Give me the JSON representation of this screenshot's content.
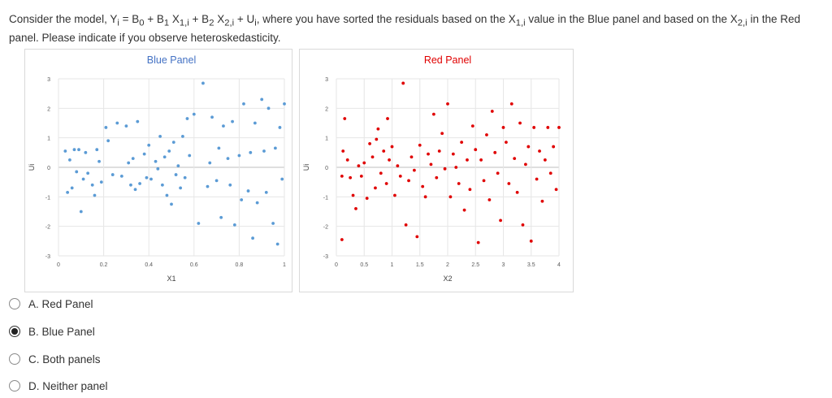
{
  "question": {
    "part1": "Consider the model, Y",
    "s_i1": "i",
    "part2": " = B",
    "s_0": "0",
    "part3": " + B",
    "s_1": "1",
    "part4": " X",
    "s_1i_a": "1,i",
    "part5": " + B",
    "s_2": "2",
    "part6": " X",
    "s_2i_a": "2,i",
    "part7": " + U",
    "s_i2": "i",
    "part8": ", where you have sorted the residuals based on the X",
    "s_1i_b": "1,i",
    "part9": " value in the Blue panel and based on the X",
    "s_2i_b": "2,i",
    "part10": " in the Red panel. Please indicate if you observe heteroskedasticity."
  },
  "chart_data": [
    {
      "type": "scatter",
      "title": "Blue Panel",
      "xlabel": "X1",
      "ylabel": "Ui",
      "xlim": [
        0,
        1
      ],
      "ylim": [
        -3,
        3
      ],
      "xticks": [
        "0",
        "0.2",
        "0.4",
        "0.6",
        "0.8",
        "1"
      ],
      "yticks": [
        "3",
        "2",
        "1",
        "0",
        "-1",
        "-2",
        "-3"
      ],
      "grid": true,
      "color": "#5b9bd5",
      "points": [
        [
          0.03,
          0.55
        ],
        [
          0.04,
          -0.85
        ],
        [
          0.05,
          0.25
        ],
        [
          0.06,
          -0.7
        ],
        [
          0.07,
          0.6
        ],
        [
          0.08,
          -0.15
        ],
        [
          0.09,
          0.6
        ],
        [
          0.1,
          -1.5
        ],
        [
          0.11,
          -0.4
        ],
        [
          0.12,
          0.5
        ],
        [
          0.13,
          -0.2
        ],
        [
          0.15,
          -0.6
        ],
        [
          0.16,
          -0.95
        ],
        [
          0.17,
          0.6
        ],
        [
          0.18,
          0.2
        ],
        [
          0.19,
          -0.5
        ],
        [
          0.21,
          1.35
        ],
        [
          0.22,
          0.9
        ],
        [
          0.24,
          -0.25
        ],
        [
          0.26,
          1.5
        ],
        [
          0.28,
          -0.3
        ],
        [
          0.3,
          1.4
        ],
        [
          0.31,
          0.15
        ],
        [
          0.32,
          -0.6
        ],
        [
          0.33,
          0.3
        ],
        [
          0.34,
          -0.75
        ],
        [
          0.35,
          1.55
        ],
        [
          0.36,
          -0.55
        ],
        [
          0.38,
          0.45
        ],
        [
          0.39,
          -0.35
        ],
        [
          0.4,
          0.75
        ],
        [
          0.41,
          -0.4
        ],
        [
          0.43,
          0.2
        ],
        [
          0.44,
          -0.05
        ],
        [
          0.45,
          1.05
        ],
        [
          0.46,
          -0.6
        ],
        [
          0.47,
          0.35
        ],
        [
          0.48,
          -0.95
        ],
        [
          0.49,
          0.55
        ],
        [
          0.5,
          -1.25
        ],
        [
          0.51,
          0.85
        ],
        [
          0.52,
          -0.25
        ],
        [
          0.53,
          0.05
        ],
        [
          0.54,
          -0.7
        ],
        [
          0.55,
          1.05
        ],
        [
          0.56,
          -0.35
        ],
        [
          0.57,
          1.65
        ],
        [
          0.58,
          0.4
        ],
        [
          0.6,
          1.8
        ],
        [
          0.62,
          -1.9
        ],
        [
          0.64,
          2.85
        ],
        [
          0.66,
          -0.65
        ],
        [
          0.67,
          0.15
        ],
        [
          0.68,
          1.7
        ],
        [
          0.7,
          -0.45
        ],
        [
          0.71,
          0.65
        ],
        [
          0.72,
          -1.7
        ],
        [
          0.73,
          1.4
        ],
        [
          0.75,
          0.3
        ],
        [
          0.76,
          -0.6
        ],
        [
          0.77,
          1.55
        ],
        [
          0.78,
          -1.95
        ],
        [
          0.8,
          0.4
        ],
        [
          0.81,
          -1.1
        ],
        [
          0.82,
          2.15
        ],
        [
          0.84,
          -0.8
        ],
        [
          0.85,
          0.5
        ],
        [
          0.86,
          -2.4
        ],
        [
          0.87,
          1.5
        ],
        [
          0.88,
          -1.2
        ],
        [
          0.9,
          2.3
        ],
        [
          0.91,
          0.55
        ],
        [
          0.92,
          -0.85
        ],
        [
          0.93,
          2.0
        ],
        [
          0.95,
          -1.9
        ],
        [
          0.96,
          0.65
        ],
        [
          0.97,
          -2.6
        ],
        [
          0.98,
          1.35
        ],
        [
          0.99,
          -0.4
        ],
        [
          1.0,
          2.15
        ]
      ]
    },
    {
      "type": "scatter",
      "title": "Red Panel",
      "xlabel": "X2",
      "ylabel": "Ui",
      "xlim": [
        0,
        4
      ],
      "ylim": [
        -3,
        3
      ],
      "xticks": [
        "0",
        "0.5",
        "1",
        "1.5",
        "2",
        "2.5",
        "3",
        "3.5",
        "4"
      ],
      "yticks": [
        "3",
        "2",
        "1",
        "0",
        "-1",
        "-2",
        "-3"
      ],
      "grid": true,
      "color": "#e00000",
      "points": [
        [
          0.1,
          -2.45
        ],
        [
          0.1,
          -0.3
        ],
        [
          0.12,
          0.55
        ],
        [
          0.15,
          1.65
        ],
        [
          0.2,
          0.25
        ],
        [
          0.25,
          -0.35
        ],
        [
          0.3,
          -0.95
        ],
        [
          0.35,
          -1.4
        ],
        [
          0.4,
          0.05
        ],
        [
          0.45,
          -0.3
        ],
        [
          0.5,
          0.15
        ],
        [
          0.55,
          -1.05
        ],
        [
          0.6,
          0.8
        ],
        [
          0.65,
          0.35
        ],
        [
          0.7,
          -0.7
        ],
        [
          0.72,
          0.95
        ],
        [
          0.75,
          1.3
        ],
        [
          0.8,
          -0.2
        ],
        [
          0.85,
          0.55
        ],
        [
          0.9,
          -0.55
        ],
        [
          0.92,
          1.65
        ],
        [
          0.95,
          0.25
        ],
        [
          1.0,
          0.7
        ],
        [
          1.05,
          -0.95
        ],
        [
          1.1,
          0.05
        ],
        [
          1.15,
          -0.3
        ],
        [
          1.2,
          2.85
        ],
        [
          1.25,
          -1.95
        ],
        [
          1.3,
          -0.45
        ],
        [
          1.35,
          0.35
        ],
        [
          1.4,
          -0.1
        ],
        [
          1.45,
          -2.35
        ],
        [
          1.5,
          0.75
        ],
        [
          1.55,
          -0.65
        ],
        [
          1.6,
          -1.0
        ],
        [
          1.65,
          0.45
        ],
        [
          1.7,
          0.1
        ],
        [
          1.75,
          1.8
        ],
        [
          1.8,
          -0.35
        ],
        [
          1.85,
          0.55
        ],
        [
          1.9,
          1.15
        ],
        [
          1.95,
          -0.05
        ],
        [
          2.0,
          2.15
        ],
        [
          2.05,
          -1.0
        ],
        [
          2.1,
          0.45
        ],
        [
          2.15,
          0.0
        ],
        [
          2.2,
          -0.55
        ],
        [
          2.25,
          0.85
        ],
        [
          2.3,
          -1.45
        ],
        [
          2.35,
          0.25
        ],
        [
          2.4,
          -0.75
        ],
        [
          2.45,
          1.4
        ],
        [
          2.5,
          0.6
        ],
        [
          2.55,
          -2.55
        ],
        [
          2.6,
          0.25
        ],
        [
          2.65,
          -0.45
        ],
        [
          2.7,
          1.1
        ],
        [
          2.75,
          -1.1
        ],
        [
          2.8,
          1.9
        ],
        [
          2.85,
          0.5
        ],
        [
          2.9,
          -0.2
        ],
        [
          2.95,
          -1.8
        ],
        [
          3.0,
          1.35
        ],
        [
          3.05,
          0.85
        ],
        [
          3.1,
          -0.55
        ],
        [
          3.15,
          2.15
        ],
        [
          3.2,
          0.3
        ],
        [
          3.25,
          -0.85
        ],
        [
          3.3,
          1.5
        ],
        [
          3.35,
          -1.95
        ],
        [
          3.4,
          0.1
        ],
        [
          3.45,
          0.7
        ],
        [
          3.5,
          -2.5
        ],
        [
          3.55,
          1.35
        ],
        [
          3.6,
          -0.4
        ],
        [
          3.65,
          0.55
        ],
        [
          3.7,
          -1.15
        ],
        [
          3.75,
          0.25
        ],
        [
          3.8,
          1.35
        ],
        [
          3.85,
          -0.2
        ],
        [
          3.9,
          0.7
        ],
        [
          3.95,
          -0.75
        ],
        [
          4.0,
          1.35
        ]
      ]
    }
  ],
  "options": [
    {
      "label": "A. Red Panel",
      "selected": false
    },
    {
      "label": "B. Blue Panel",
      "selected": true
    },
    {
      "label": "C. Both panels",
      "selected": false
    },
    {
      "label": "D. Neither panel",
      "selected": false
    }
  ]
}
